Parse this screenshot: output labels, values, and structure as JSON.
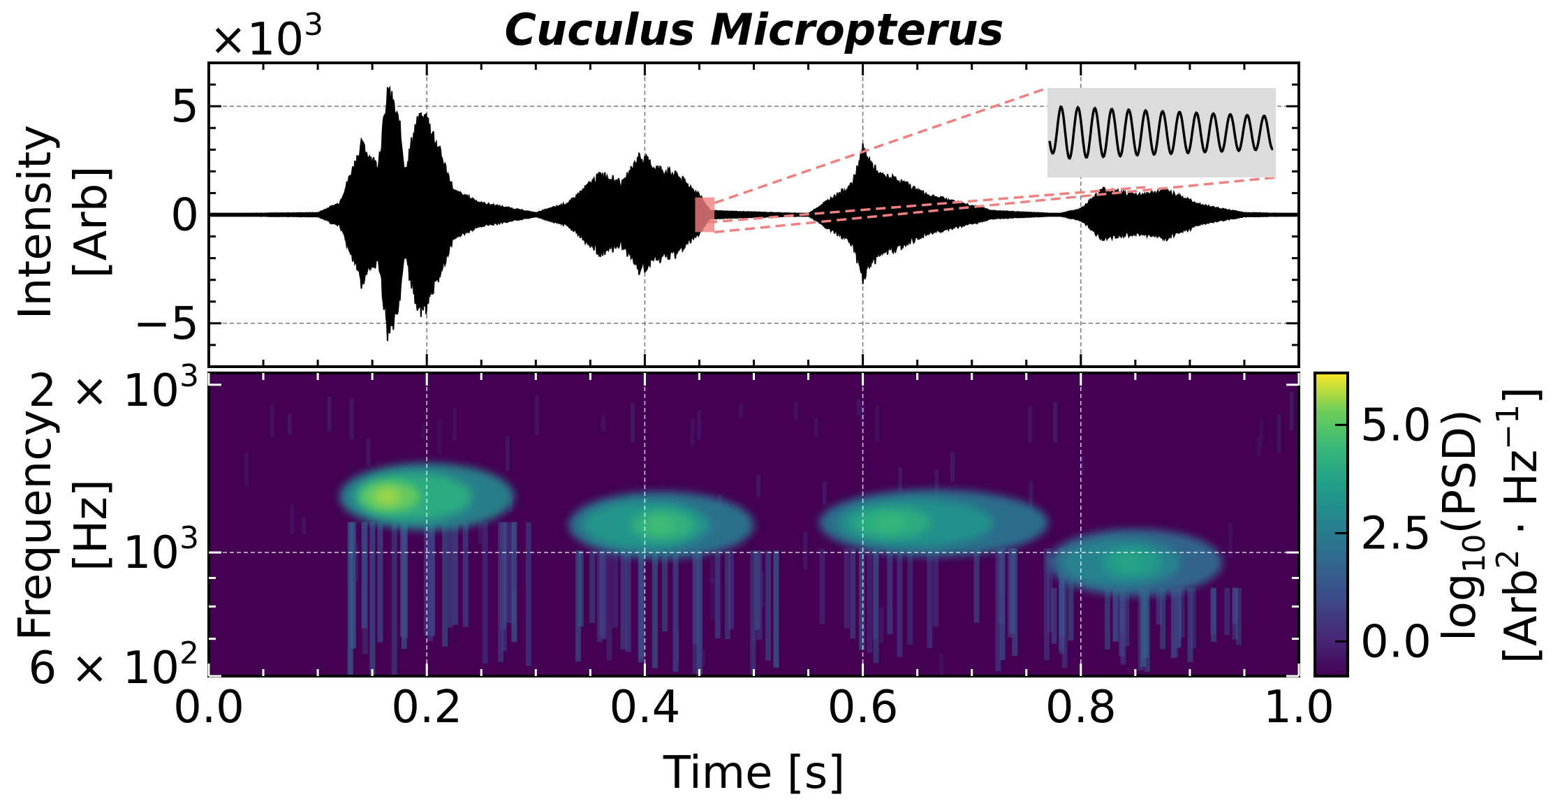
{
  "chart_data": [
    {
      "type": "line",
      "title": "Cuculus Micropterus",
      "xlabel": "",
      "ylabel": [
        "Intensity",
        "[Arb]"
      ],
      "y_multiplier": "×10",
      "y_multiplier_exp": "3",
      "xlim": [
        0.0,
        1.0
      ],
      "ylim": [
        -7,
        7
      ],
      "yticks": [
        -5,
        0,
        5
      ],
      "ytick_labels": [
        "−5",
        "0",
        "5"
      ],
      "grid": true,
      "series": [
        {
          "values_description_none": "",
          "envelope": [
            {
              "t": 0.0,
              "a": 0.05
            },
            {
              "t": 0.1,
              "a": 0.1
            },
            {
              "t": 0.12,
              "a": 0.6
            },
            {
              "t": 0.14,
              "a": 3.5
            },
            {
              "t": 0.155,
              "a": 2.5
            },
            {
              "t": 0.165,
              "a": 6.3
            },
            {
              "t": 0.175,
              "a": 4.5
            },
            {
              "t": 0.18,
              "a": 2.2
            },
            {
              "t": 0.19,
              "a": 4.6
            },
            {
              "t": 0.2,
              "a": 4.9
            },
            {
              "t": 0.21,
              "a": 3.5
            },
            {
              "t": 0.225,
              "a": 1.2
            },
            {
              "t": 0.25,
              "a": 0.6
            },
            {
              "t": 0.28,
              "a": 0.3
            },
            {
              "t": 0.3,
              "a": 0.1
            },
            {
              "t": 0.33,
              "a": 0.6
            },
            {
              "t": 0.36,
              "a": 2.1
            },
            {
              "t": 0.38,
              "a": 1.6
            },
            {
              "t": 0.395,
              "a": 3.0
            },
            {
              "t": 0.41,
              "a": 2.4
            },
            {
              "t": 0.43,
              "a": 2.0
            },
            {
              "t": 0.45,
              "a": 1.0
            },
            {
              "t": 0.46,
              "a": 0.2
            },
            {
              "t": 0.55,
              "a": 0.05
            },
            {
              "t": 0.57,
              "a": 0.8
            },
            {
              "t": 0.59,
              "a": 1.5
            },
            {
              "t": 0.6,
              "a": 3.3
            },
            {
              "t": 0.615,
              "a": 2.0
            },
            {
              "t": 0.63,
              "a": 1.8
            },
            {
              "t": 0.66,
              "a": 1.0
            },
            {
              "t": 0.69,
              "a": 0.6
            },
            {
              "t": 0.72,
              "a": 0.2
            },
            {
              "t": 0.78,
              "a": 0.05
            },
            {
              "t": 0.8,
              "a": 0.3
            },
            {
              "t": 0.82,
              "a": 1.3
            },
            {
              "t": 0.85,
              "a": 1.0
            },
            {
              "t": 0.88,
              "a": 1.2
            },
            {
              "t": 0.91,
              "a": 0.5
            },
            {
              "t": 0.95,
              "a": 0.1
            },
            {
              "t": 1.0,
              "a": 0.05
            }
          ]
        }
      ],
      "inset": {
        "zoom_t": [
          0.45,
          0.46
        ],
        "zoom_a": [
          -0.8,
          0.8
        ],
        "background": "#dcdcdc",
        "highlight_color": "#f08080"
      }
    },
    {
      "type": "heatmap",
      "xlabel": "Time [s]",
      "ylabel": [
        "Frequency",
        "[Hz]"
      ],
      "xlim": [
        0.0,
        1.0
      ],
      "xticks": [
        0.0,
        0.2,
        0.4,
        0.6,
        0.8,
        1.0
      ],
      "xtick_labels": [
        "0.0",
        "0.2",
        "0.4",
        "0.6",
        "0.8",
        "1.0"
      ],
      "ylim": [
        600,
        2100
      ],
      "y_scale": "log",
      "ytick_labels": [
        {
          "value": 2000,
          "mant": "2 × 10",
          "exp": "3"
        },
        {
          "value": 1000,
          "mant": "10",
          "exp": "3"
        },
        {
          "value": 600,
          "mant": "6 × 10",
          "exp": "2"
        }
      ],
      "colormap": "viridis",
      "colorbar": {
        "label_line1": "log",
        "label_line1_sub": "10",
        "label_line1_rest": "(PSD)",
        "label_line2_a": "[Arb",
        "label_line2_sup1": "2",
        "label_line2_b": " · Hz",
        "label_line2_sup2": "−1",
        "label_line2_c": "]",
        "range": [
          -0.8,
          6.2
        ],
        "ticks": [
          0.0,
          2.5,
          5.0
        ],
        "tick_labels": [
          "0.0",
          "2.5",
          "5.0"
        ]
      },
      "blobs": [
        {
          "t0": 0.12,
          "t1": 0.28,
          "f": 1260,
          "peak_t": 0.16,
          "peak": 5.6
        },
        {
          "t0": 0.33,
          "t1": 0.5,
          "f": 1120,
          "peak_t": 0.41,
          "peak": 4.6
        },
        {
          "t0": 0.56,
          "t1": 0.77,
          "f": 1130,
          "peak_t": 0.62,
          "peak": 4.4
        },
        {
          "t0": 0.77,
          "t1": 0.93,
          "f": 960,
          "peak_t": 0.84,
          "peak": 3.8
        }
      ],
      "grid": true
    }
  ],
  "colors": {
    "line": "#000000",
    "grid": "#808080",
    "inset_bg": "#dcdcdc",
    "zoom": "#f08080"
  }
}
